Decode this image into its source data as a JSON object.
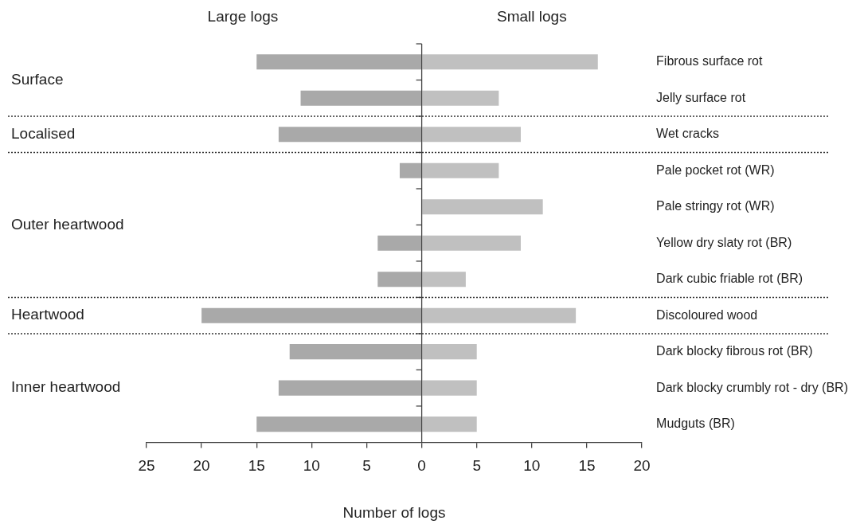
{
  "chart_data": {
    "type": "bar",
    "orientation": "horizontal",
    "stacked": true,
    "xlabel": "Number of logs",
    "categories": [
      "Fibrous surface rot",
      "Jelly surface rot",
      "Wet cracks",
      "Pale pocket rot (WR)",
      "Pale stringy rot (WR)",
      "Yellow dry slaty rot (BR)",
      "Dark cubic friable rot (BR)",
      "Discoloured wood",
      "Dark blocky fibrous rot (BR)",
      "Dark blocky crumbly rot - dry (BR)",
      "Mudguts (BR)"
    ],
    "series": [
      {
        "name": "Large logs",
        "color": "#a9a9a9",
        "values": [
          -15,
          -11,
          -13,
          -2,
          0,
          -4,
          -4,
          -20,
          -12,
          -13,
          -15
        ]
      },
      {
        "name": "Small logs",
        "color": "#c0c0c0",
        "values": [
          16,
          7,
          9,
          7,
          11,
          9,
          4,
          14,
          5,
          5,
          5
        ]
      }
    ],
    "xlim": [
      -25,
      20
    ],
    "xticks": [
      {
        "value": -25,
        "label": "25"
      },
      {
        "value": -20,
        "label": "20"
      },
      {
        "value": -15,
        "label": "15"
      },
      {
        "value": -10,
        "label": "10"
      },
      {
        "value": -5,
        "label": "5"
      },
      0,
      5,
      10,
      15,
      20
    ],
    "annotations": [
      "Surface",
      "Localised",
      "Outer heartwood",
      "Heartwood",
      "Inner heartwood"
    ],
    "grid": false,
    "legend": false
  }
}
